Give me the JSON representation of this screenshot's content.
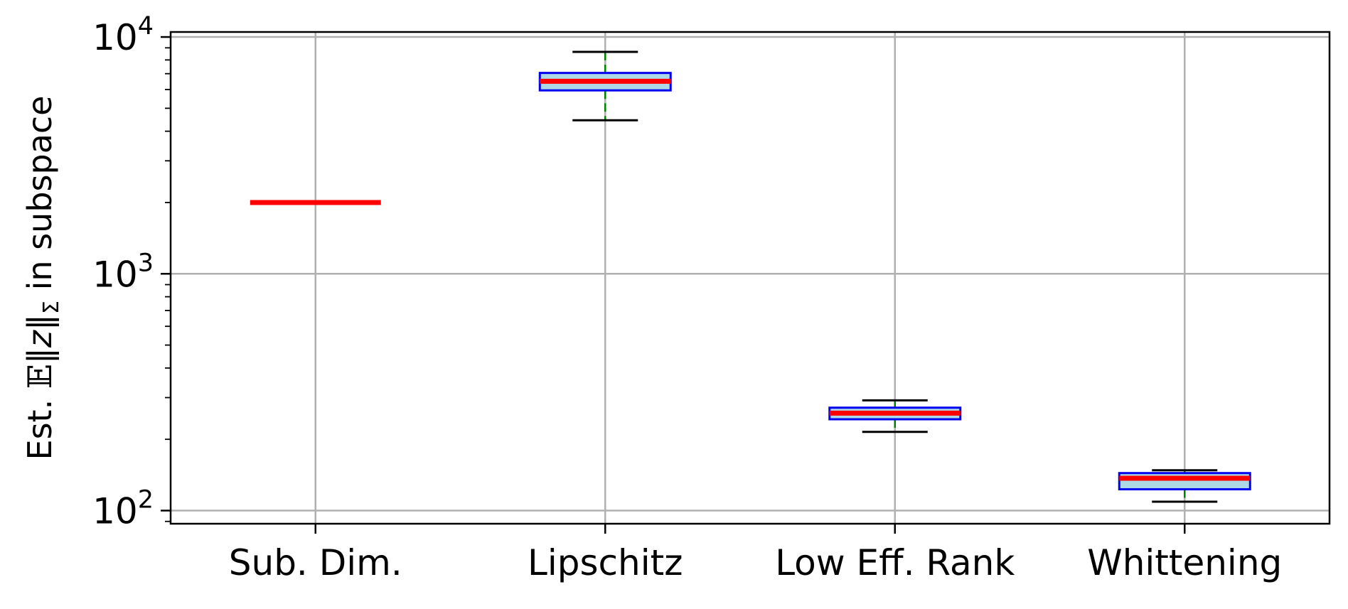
{
  "chart_data": {
    "type": "box",
    "categories": [
      "Sub. Dim.",
      "Lipschitz",
      "Low Eff. Rank",
      "Whittening"
    ],
    "ylabel": "Est. 𝔼‖z‖Σ in subspace",
    "ylabel_parts": {
      "prefix": "Est. ",
      "expectation": "𝔼",
      "norm_open": "‖",
      "variable": "z",
      "norm_close": "‖",
      "subscript": "Σ",
      "suffix": " in subspace"
    },
    "yscale": "log",
    "ylim": [
      88,
      10500
    ],
    "yticks": [
      {
        "value": 100,
        "base": "10",
        "exp": "2"
      },
      {
        "value": 1000,
        "base": "10",
        "exp": "3"
      },
      {
        "value": 10000,
        "base": "10",
        "exp": "4"
      }
    ],
    "grid": true,
    "boxes": [
      {
        "category": "Sub. Dim.",
        "whisker_low": 2000,
        "q1": 2000,
        "median": 2000,
        "q3": 2000,
        "whisker_high": 2000
      },
      {
        "category": "Lipschitz",
        "whisker_low": 4450,
        "q1": 5950,
        "median": 6500,
        "q3": 7050,
        "whisker_high": 8650
      },
      {
        "category": "Low Eff. Rank",
        "whisker_low": 215,
        "q1": 243,
        "median": 258,
        "q3": 272,
        "whisker_high": 292
      },
      {
        "category": "Whittening",
        "whisker_low": 109,
        "q1": 123,
        "median": 137,
        "q3": 144,
        "whisker_high": 148
      }
    ],
    "colors": {
      "box_edge": "#0000ee",
      "box_fill": "#add8e6",
      "median": "#ff0000",
      "whisker": "#008000",
      "cap": "#000000",
      "grid": "#b0b0b0",
      "axis": "#000000"
    }
  }
}
